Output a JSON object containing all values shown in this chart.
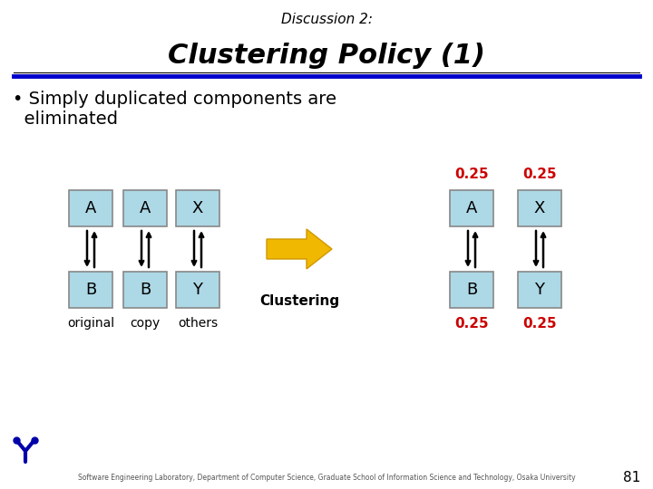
{
  "title_small": "Discussion 2:",
  "title_large": "Clustering Policy (1)",
  "bg_color": "#ffffff",
  "box_fill": "#add8e6",
  "box_edge": "#888888",
  "text_color": "#000000",
  "red_color": "#cc0000",
  "arrow_color": "#000000",
  "big_arrow_fill": "#f0b800",
  "big_arrow_edge": "#d09800",
  "title_line_color": "#0000cc",
  "footer_text": "Software Engineering Laboratory, Department of Computer Science, Graduate School of Information Science and Technology, Osaka University",
  "page_num": "81",
  "left_top_labels": [
    "A",
    "A",
    "X"
  ],
  "left_bot_labels": [
    "B",
    "B",
    "Y"
  ],
  "left_col_labels": [
    "original",
    "copy",
    "others"
  ],
  "right_top_labels_box": [
    "A",
    "X"
  ],
  "right_bot_labels_box": [
    "B",
    "Y"
  ],
  "right_025_labels": [
    "0.25",
    "0.25"
  ],
  "clustering_label": "Clustering"
}
